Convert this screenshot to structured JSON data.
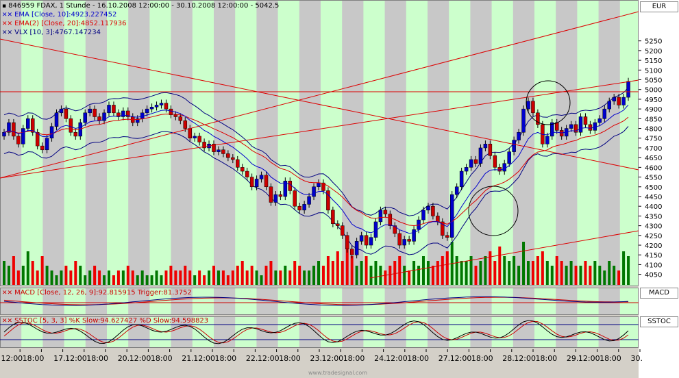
{
  "window": {
    "symbol": "846959",
    "title": "846959  FDAX, 1 Stunde - 16.10.2008 12:00:00 - 30.10.2008 12:00:00 - 5042.5",
    "currency": "EUR",
    "watermark": "www.tradesignal.com"
  },
  "legend": {
    "ema10": "EMA [Close, 10]:4923.227452",
    "ema20": "EMA(2) [Close, 20]:4852.117936",
    "vlx": "VLX [10, 3]:4767.147234",
    "macd": "MACD [Close, 12, 26, 9]:92.815915 Trigger:81.3752",
    "sstoc": "SSTOC [5, 3, 3] %K Slow:94.627427 %D Slow:94.598823"
  },
  "panes": {
    "macd_label": "MACD",
    "sstoc_label": "SSTOC"
  },
  "colors": {
    "green_band": "#ccffcc",
    "gray_band": "#c8c8c8",
    "ema10": "#0000cc",
    "ema20": "#dd0000",
    "vlx": "#000080",
    "up_candle": "#0000cc",
    "down_candle": "#cc0000",
    "vol_up": "#007700",
    "vol_down": "#ee0000",
    "trendline": "#dd0000"
  },
  "chart_data": {
    "type": "candlestick",
    "x_tick_labels": [
      "12:00",
      "18:00",
      "17.",
      "12:00",
      "18:00",
      "20.",
      "12:00",
      "18:00",
      "21.",
      "12:00",
      "18:00",
      "22.",
      "12:00",
      "18:00",
      "23.",
      "12:00",
      "18:00",
      "24.",
      "12:00",
      "18:00",
      "27.",
      "12:00",
      "18:00",
      "28.",
      "12:00",
      "18:00",
      "29.",
      "12:00",
      "18:00",
      "30."
    ],
    "y_tick_labels": [
      5250,
      5200,
      5150,
      5100,
      5050,
      5000,
      4950,
      4900,
      4850,
      4800,
      4750,
      4700,
      4650,
      4600,
      4550,
      4500,
      4450,
      4400,
      4350,
      4300,
      4250,
      4200,
      4150,
      4100,
      4050
    ],
    "ylim": [
      4010,
      5270
    ],
    "last_price": 5042.5,
    "close": [
      4780,
      4830,
      4760,
      4720,
      4800,
      4850,
      4780,
      4710,
      4690,
      4750,
      4810,
      4880,
      4900,
      4850,
      4780,
      4760,
      4830,
      4880,
      4900,
      4860,
      4840,
      4880,
      4920,
      4880,
      4860,
      4890,
      4860,
      4830,
      4850,
      4880,
      4900,
      4910,
      4920,
      4930,
      4900,
      4870,
      4860,
      4840,
      4800,
      4750,
      4760,
      4730,
      4700,
      4720,
      4680,
      4690,
      4670,
      4650,
      4640,
      4600,
      4580,
      4550,
      4500,
      4540,
      4560,
      4500,
      4420,
      4460,
      4450,
      4530,
      4480,
      4400,
      4380,
      4410,
      4450,
      4500,
      4520,
      4480,
      4380,
      4310,
      4300,
      4250,
      4180,
      4150,
      4220,
      4250,
      4200,
      4240,
      4320,
      4380,
      4360,
      4300,
      4260,
      4200,
      4230,
      4220,
      4280,
      4330,
      4380,
      4400,
      4350,
      4320,
      4250,
      4240,
      4460,
      4500,
      4580,
      4600,
      4640,
      4620,
      4700,
      4720,
      4660,
      4600,
      4580,
      4620,
      4680,
      4740,
      4780,
      4900,
      4940,
      4880,
      4820,
      4720,
      4760,
      4830,
      4790,
      4760,
      4800,
      4820,
      4780,
      4860,
      4820,
      4790,
      4830,
      4850,
      4900,
      4940,
      4960,
      4920,
      4960,
      5042
    ],
    "volume_scale": [
      0.5,
      0.4,
      0.6,
      0.3,
      0.4,
      0.7,
      0.5,
      0.3,
      0.6,
      0.4,
      0.3,
      0.2,
      0.3,
      0.4,
      0.3,
      0.5,
      0.4,
      0.2,
      0.3,
      0.4,
      0.3,
      0.2,
      0.3,
      0.2,
      0.3,
      0.3,
      0.4,
      0.3,
      0.2,
      0.3,
      0.2,
      0.2,
      0.3,
      0.2,
      0.3,
      0.4,
      0.3,
      0.3,
      0.4,
      0.3,
      0.2,
      0.3,
      0.2,
      0.3,
      0.4,
      0.3,
      0.3,
      0.2,
      0.3,
      0.4,
      0.5,
      0.3,
      0.4,
      0.3,
      0.2,
      0.4,
      0.5,
      0.3,
      0.3,
      0.4,
      0.3,
      0.5,
      0.4,
      0.3,
      0.3,
      0.4,
      0.5,
      0.4,
      0.6,
      0.5,
      0.7,
      0.5,
      0.8,
      0.6,
      0.4,
      0.5,
      0.6,
      0.4,
      0.5,
      0.4,
      0.3,
      0.4,
      0.5,
      0.6,
      0.4,
      0.3,
      0.5,
      0.4,
      0.6,
      0.5,
      0.4,
      0.5,
      0.6,
      0.7,
      0.9,
      0.6,
      0.5,
      0.5,
      0.6,
      0.4,
      0.5,
      0.6,
      0.7,
      0.5,
      0.8,
      0.6,
      0.5,
      0.6,
      0.4,
      0.9,
      0.5,
      0.5,
      0.6,
      0.7,
      0.5,
      0.4,
      0.6,
      0.5,
      0.4,
      0.5,
      0.4,
      0.4,
      0.5,
      0.4,
      0.5,
      0.4,
      0.3,
      0.5,
      0.4,
      0.3,
      0.7,
      0.6
    ]
  }
}
